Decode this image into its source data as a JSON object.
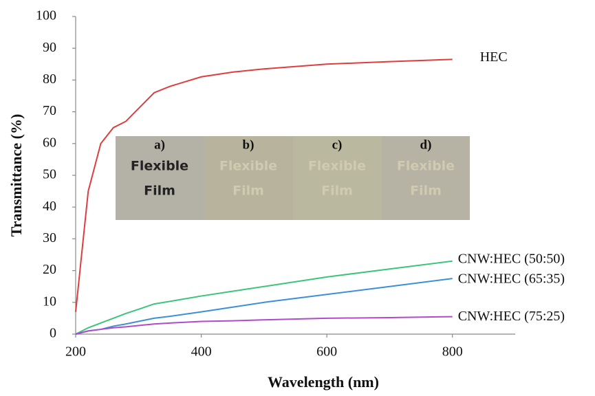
{
  "chart_data": {
    "type": "line",
    "x_label": "Wavelength (nm)",
    "y_label": "Transmittance (%)",
    "x": [
      200,
      220,
      240,
      260,
      280,
      300,
      325,
      350,
      400,
      450,
      500,
      600,
      700,
      800
    ],
    "series": [
      {
        "name": "HEC",
        "color": "#e03c3c",
        "values": [
          7,
          45,
          60,
          65,
          67,
          71,
          76,
          78,
          81,
          82.5,
          83.5,
          85,
          85.8,
          86.5
        ]
      },
      {
        "name": "CNW:HEC (50:50)",
        "color": "#3cc47a",
        "values": [
          0,
          2,
          3.5,
          5,
          6.5,
          7.8,
          9.5,
          10.3,
          12,
          13.5,
          15,
          18,
          20.5,
          23
        ]
      },
      {
        "name": "CNW:HEC (65:35)",
        "color": "#3a8fd6",
        "values": [
          0,
          1,
          1.5,
          2.5,
          3.2,
          4,
          5,
          5.6,
          7,
          8.5,
          10,
          12.5,
          15,
          17.5
        ]
      },
      {
        "name": "CNW:HEC (75:25)",
        "color": "#b04ac8",
        "values": [
          0,
          1,
          1.5,
          2,
          2.3,
          2.7,
          3.2,
          3.5,
          4,
          4.2,
          4.5,
          5,
          5.2,
          5.5
        ]
      }
    ],
    "xlim": [
      200,
      900
    ],
    "xticks": [
      200,
      400,
      600,
      800
    ],
    "ylim": [
      0,
      100
    ],
    "yticks": [
      0,
      10,
      20,
      30,
      40,
      50,
      60,
      70,
      80,
      90,
      100
    ],
    "grid": false,
    "inset": {
      "panels": [
        {
          "label": "a)",
          "lines": [
            "Flexible",
            "Film"
          ]
        },
        {
          "label": "b)",
          "lines": [
            "Flexible",
            "Film"
          ]
        },
        {
          "label": "c)",
          "lines": [
            "Flexible",
            "Film"
          ]
        },
        {
          "label": "d)",
          "lines": [
            "Flexible",
            "Film"
          ]
        }
      ]
    }
  }
}
